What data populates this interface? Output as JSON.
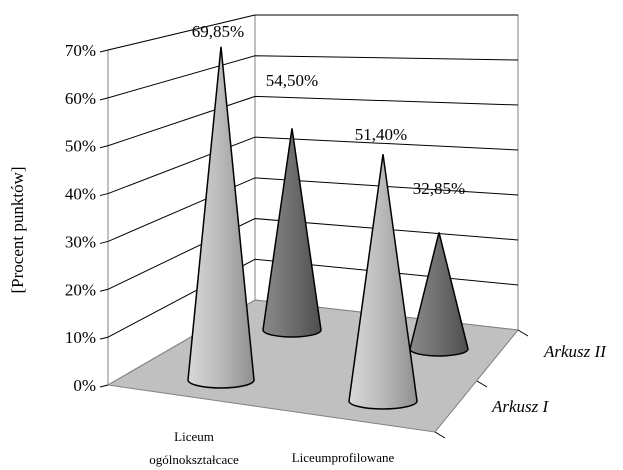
{
  "chart_data": {
    "type": "bar",
    "style": "3d-cone",
    "ylabel": "[Procent punktów]",
    "y_ticks": [
      "0%",
      "10%",
      "20%",
      "30%",
      "40%",
      "50%",
      "60%",
      "70%"
    ],
    "ylim": [
      0,
      70
    ],
    "categories": [
      {
        "line1": "Liceum",
        "line2": "ogólnokształcace"
      },
      {
        "line1": "Liceumprofilowane",
        "line2": ""
      }
    ],
    "series": [
      {
        "name": "Arkusz I",
        "values": [
          69.85,
          51.4
        ],
        "labels": [
          "69,85%",
          "51,40%"
        ],
        "color": "#c8c8c8"
      },
      {
        "name": "Arkusz II",
        "values": [
          54.5,
          32.85
        ],
        "labels": [
          "54,50%",
          "32,85%"
        ],
        "color": "#7a7a7a"
      }
    ],
    "grid": true,
    "floor_color": "#c0c0c0"
  }
}
